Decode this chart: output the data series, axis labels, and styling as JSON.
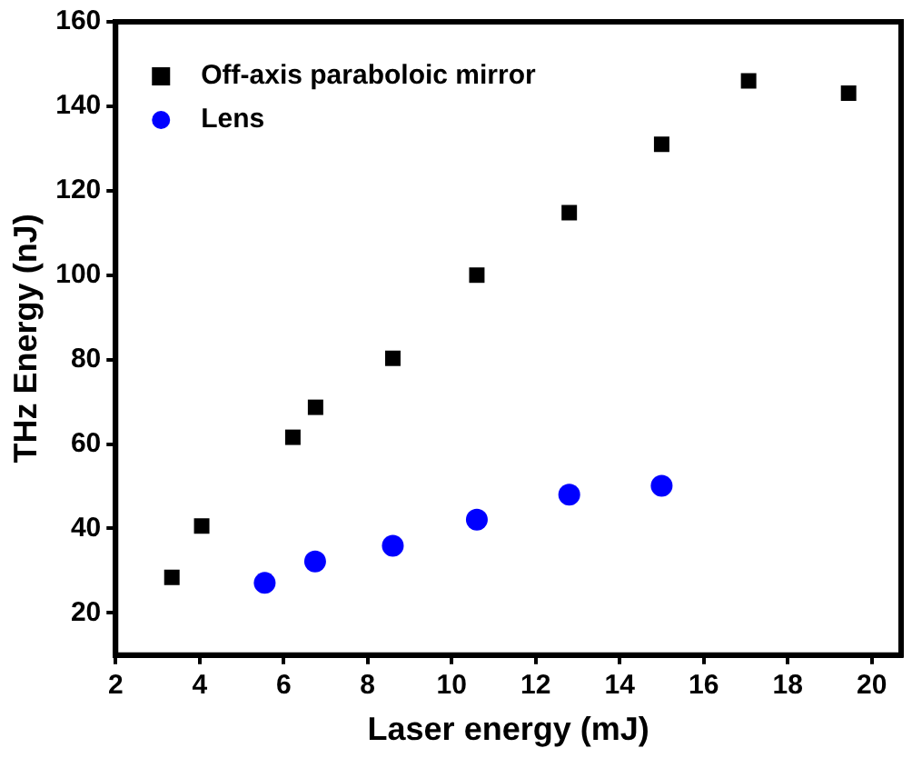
{
  "chart_data": {
    "type": "scatter",
    "xlabel": "Laser energy (mJ)",
    "ylabel": "THz Energy (nJ)",
    "xlim": [
      2,
      20.7
    ],
    "xticks": [
      2,
      4,
      6,
      8,
      10,
      12,
      14,
      16,
      18,
      20
    ],
    "ylim": [
      10,
      160
    ],
    "yticks": [
      20,
      40,
      60,
      80,
      100,
      120,
      140,
      160
    ],
    "grid": false,
    "legend": "top left",
    "series": [
      {
        "name": "Off-axis paraboloic mirror",
        "color": "#000000",
        "marker": "square",
        "x": [
          3.34,
          4.05,
          6.22,
          6.76,
          8.6,
          10.6,
          12.8,
          15.0,
          17.07,
          19.45
        ],
        "values": [
          28.4,
          40.6,
          61.6,
          68.7,
          80.3,
          100,
          114.8,
          131,
          146,
          143.1
        ]
      },
      {
        "name": "Lens",
        "color": "#0000ff",
        "marker": "circle",
        "x": [
          5.55,
          6.75,
          8.6,
          10.6,
          12.8,
          15.0
        ],
        "values": [
          27.1,
          32.2,
          35.9,
          42.1,
          48,
          50.1
        ]
      }
    ]
  }
}
